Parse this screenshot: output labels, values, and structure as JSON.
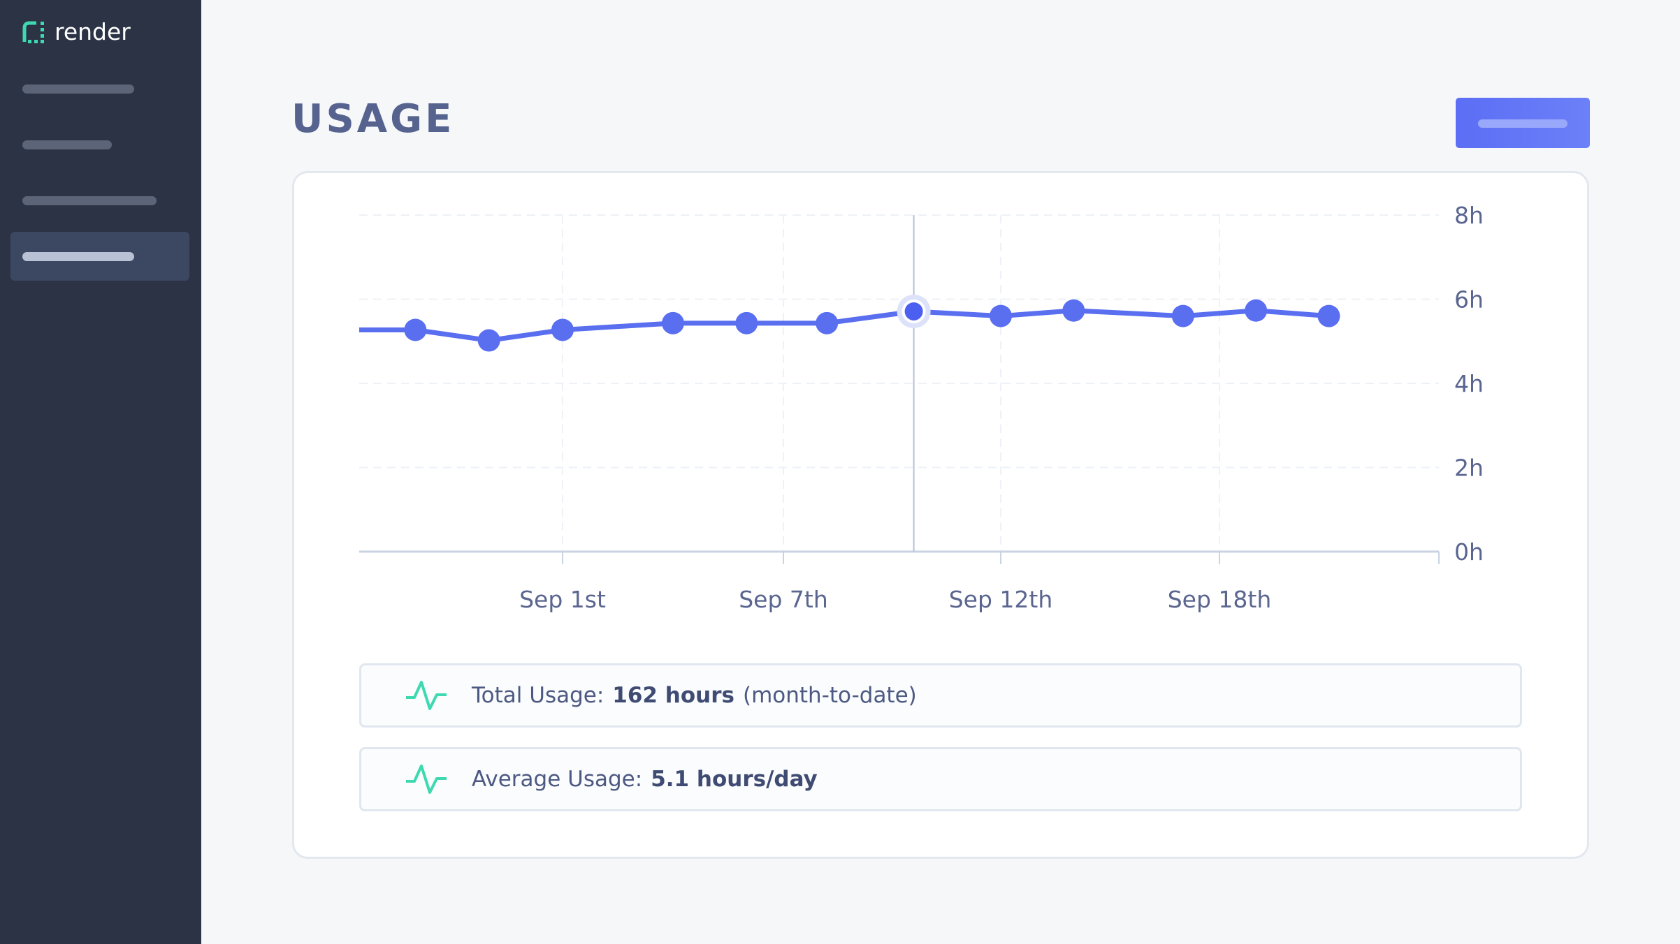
{
  "sidebar": {
    "logo_text": "render",
    "items": [
      {
        "bar_width": 160,
        "active": false
      },
      {
        "bar_width": 128,
        "active": false
      },
      {
        "bar_width": 192,
        "active": false
      },
      {
        "bar_width": 160,
        "active": true
      }
    ]
  },
  "page": {
    "title": "USAGE"
  },
  "stats": {
    "total_label": "Total Usage:",
    "total_value": "162 hours",
    "total_suffix": "(month-to-date)",
    "avg_label": "Average Usage:",
    "avg_value": "5.1 hours/day",
    "icon": "activity-pulse-icon"
  },
  "colors": {
    "line": "#5a6ff0",
    "accent": "#3ed9b0",
    "sidebar": "#2b3345",
    "axis_text": "#5a6690"
  },
  "chart_data": {
    "type": "line",
    "title": "",
    "xlabel": "",
    "ylabel": "",
    "ylim": [
      0,
      8
    ],
    "y_ticks": [
      "0h",
      "2h",
      "4h",
      "6h",
      "8h"
    ],
    "y_tick_values": [
      0,
      2,
      4,
      6,
      8
    ],
    "x_ticks": [
      {
        "label": "Sep 1st",
        "date": "09-01"
      },
      {
        "label": "Sep 7th",
        "date": "09-07"
      },
      {
        "label": "Sep 12th",
        "date": "09-12"
      },
      {
        "label": "Sep 18th",
        "date": "09-18"
      }
    ],
    "grid": true,
    "highlighted_date": "09-10",
    "series": [
      {
        "values": [
          {
            "x": "08-26",
            "y": 5.27,
            "marker": false
          },
          {
            "x": "08-28",
            "y": 5.27
          },
          {
            "x": "08-30",
            "y": 5.02
          },
          {
            "x": "09-01",
            "y": 5.27
          },
          {
            "x": "09-04",
            "y": 5.43
          },
          {
            "x": "09-06",
            "y": 5.43
          },
          {
            "x": "09-08",
            "y": 5.43
          },
          {
            "x": "09-10",
            "y": 5.71
          },
          {
            "x": "09-12",
            "y": 5.6
          },
          {
            "x": "09-14",
            "y": 5.73
          },
          {
            "x": "09-17",
            "y": 5.6
          },
          {
            "x": "09-19",
            "y": 5.73
          },
          {
            "x": "09-21",
            "y": 5.6
          }
        ]
      }
    ]
  }
}
